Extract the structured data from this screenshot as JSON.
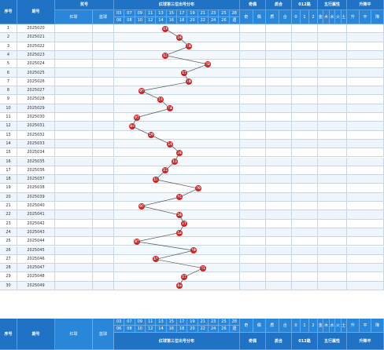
{
  "headers": {
    "seq": "序号",
    "issue": "期号",
    "number_group": "奖号",
    "redball": "红球",
    "blueball": "蓝球",
    "dist": "红球第三位出号分布",
    "odd_even": "奇偶",
    "prime": "质合",
    "mod012": "012路",
    "wuxing": "五行属性",
    "trend": "升降平"
  },
  "top_cols": [
    "03",
    "07",
    "09",
    "11",
    "13",
    "15",
    "17",
    "19",
    "21",
    "23",
    "25",
    "28"
  ],
  "top_cols2": [
    "06",
    "08",
    "10",
    "12",
    "14",
    "16",
    "18",
    "20",
    "22",
    "24",
    "26",
    "遗"
  ],
  "sub_labels": {
    "oe": [
      "奇",
      "偶"
    ],
    "pc": [
      "质",
      "合"
    ],
    "m": [
      "0",
      "1",
      "2"
    ],
    "wx": [
      "金",
      "木",
      "水",
      "火",
      "土"
    ],
    "tr": [
      "升",
      "平",
      "降"
    ]
  },
  "rows": [
    {
      "seq": "1",
      "issue": "2025020",
      "ball": "13"
    },
    {
      "seq": "2",
      "issue": "2025021",
      "ball": "16"
    },
    {
      "seq": "3",
      "issue": "2025022",
      "ball": "18"
    },
    {
      "seq": "4",
      "issue": "2025023",
      "ball": "13"
    },
    {
      "seq": "5",
      "issue": "2025024",
      "ball": "22"
    },
    {
      "seq": "6",
      "issue": "2025025",
      "ball": "17"
    },
    {
      "seq": "7",
      "issue": "2025026",
      "ball": "18"
    },
    {
      "seq": "8",
      "issue": "2025027",
      "ball": "08"
    },
    {
      "seq": "9",
      "issue": "2025028",
      "ball": "12"
    },
    {
      "seq": "10",
      "issue": "2025029",
      "ball": "14"
    },
    {
      "seq": "11",
      "issue": "2025030",
      "ball": "07"
    },
    {
      "seq": "12",
      "issue": "2025031",
      "ball": "06"
    },
    {
      "seq": "13",
      "issue": "2025032",
      "ball": "10"
    },
    {
      "seq": "14",
      "issue": "2025033",
      "ball": "14"
    },
    {
      "seq": "15",
      "issue": "2025034",
      "ball": "16"
    },
    {
      "seq": "16",
      "issue": "2025035",
      "ball": "15"
    },
    {
      "seq": "17",
      "issue": "2025036",
      "ball": "13"
    },
    {
      "seq": "18",
      "issue": "2025037",
      "ball": "11"
    },
    {
      "seq": "19",
      "issue": "2025038",
      "ball": "20"
    },
    {
      "seq": "20",
      "issue": "2025039",
      "ball": "16"
    },
    {
      "seq": "21",
      "issue": "2025040",
      "ball": "08"
    },
    {
      "seq": "22",
      "issue": "2025041",
      "ball": "16"
    },
    {
      "seq": "23",
      "issue": "2025042",
      "ball": "17"
    },
    {
      "seq": "24",
      "issue": "2025043",
      "ball": "16"
    },
    {
      "seq": "25",
      "issue": "2025044",
      "ball": "07"
    },
    {
      "seq": "26",
      "issue": "2025045",
      "ball": "19"
    },
    {
      "seq": "27",
      "issue": "2025046",
      "ball": "11"
    },
    {
      "seq": "28",
      "issue": "2025047",
      "ball": "21"
    },
    {
      "seq": "29",
      "issue": "2025048",
      "ball": "17"
    },
    {
      "seq": "30",
      "issue": "2025049",
      "ball": "16"
    }
  ]
}
